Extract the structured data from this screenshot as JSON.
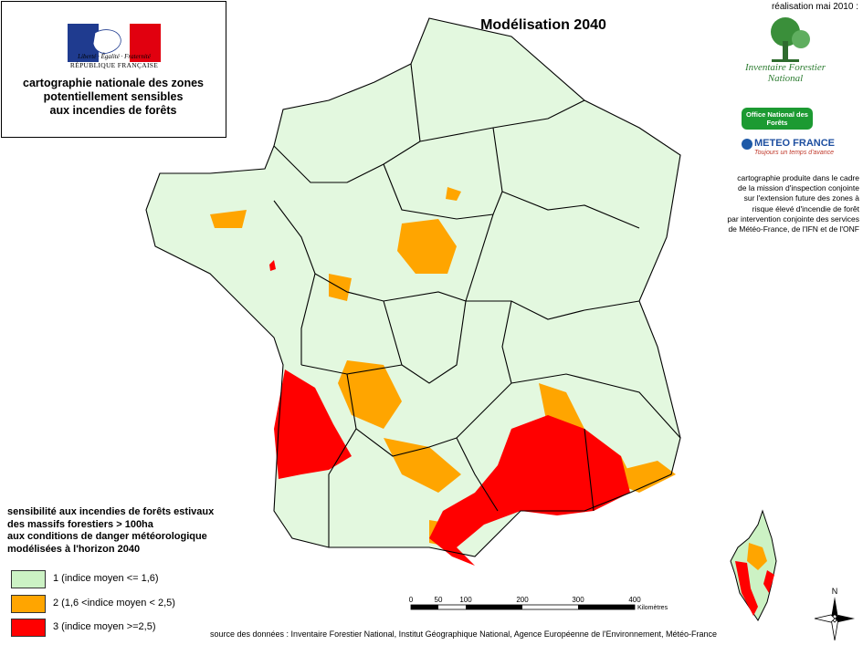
{
  "header": {
    "republic_motto": "Liberté · Égalité · Fraternité",
    "republic_name": "RÉPUBLIQUE FRANÇAISE",
    "box_title_line1": "cartographie nationale des zones",
    "box_title_line2": "potentiellement sensibles",
    "box_title_line3": "aux incendies de forêts",
    "map_title": "Modélisation 2040",
    "realisation": "réalisation mai 2010 :"
  },
  "logos": {
    "ifn_line1": "Inventaire Forestier",
    "ifn_line2": "National",
    "onf": "Office National des Forêts",
    "meteo": "METEO FRANCE",
    "meteo_sub": "Toujours un temps d'avance"
  },
  "note": {
    "lines": [
      "cartographie produite dans le cadre",
      "de la mission d'inspection conjointe",
      "sur l'extension future des zones à",
      "risque élevé d'incendie de forêt",
      "par intervention conjointe des services",
      "de Météo-France, de l'IFN et de l'ONF"
    ]
  },
  "legend": {
    "title_lines": [
      "sensibilité aux incendies de forêts estivaux",
      "des massifs forestiers > 100ha",
      "aux conditions de danger météorologique",
      "modélisées à l'horizon 2040"
    ],
    "items": [
      {
        "label": "1   (indice moyen <= 1,6)",
        "color": "#ccf2c4"
      },
      {
        "label": "2   (1,6 <indice moyen < 2,5)",
        "color": "#ffa500"
      },
      {
        "label": "3   (indice moyen >=2,5)",
        "color": "#ff0000"
      }
    ]
  },
  "scale": {
    "ticks": [
      "0",
      "50",
      "100",
      "200",
      "300",
      "400"
    ],
    "unit": "Kilomètres"
  },
  "north": "N",
  "source": "source des données : Inventaire Forestier National, Institut Géographique National, Agence Européenne de l'Environnement, Météo-France",
  "colors": {
    "class1": "#ccf2c4",
    "class2": "#ffa500",
    "class3": "#ff0000",
    "border": "#000000"
  }
}
